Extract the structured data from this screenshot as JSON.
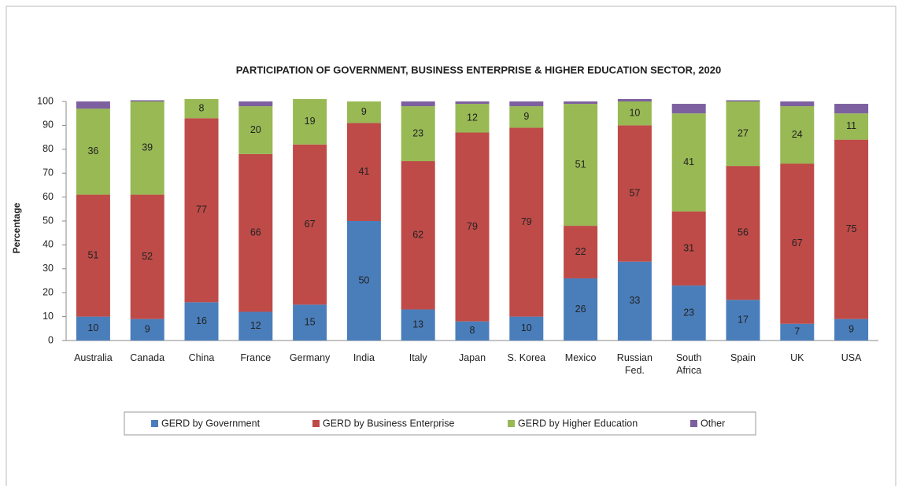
{
  "chart_data": {
    "type": "stacked_bar",
    "title": "PARTICIPATION OF GOVERNMENT, BUSINESS ENTERPRISE & HIGHER EDUCATION SECTOR, 2020",
    "y_label": "Percentage",
    "categories": [
      "Australia",
      "Canada",
      "China",
      "France",
      "Germany",
      "India",
      "Italy",
      "Japan",
      "S. Korea",
      "Mexico",
      "Russian Fed.",
      "South Africa",
      "Spain",
      "UK",
      "USA"
    ],
    "series": [
      {
        "name": "GERD by Government",
        "color": "#4a7ebb",
        "show_labels": true,
        "values": [
          10,
          9,
          16,
          12,
          15,
          50,
          13,
          8,
          10,
          26,
          33,
          23,
          17,
          7,
          9
        ]
      },
      {
        "name": "GERD by Business Enterprise",
        "color": "#be4b48",
        "show_labels": true,
        "values": [
          51,
          52,
          77,
          66,
          67,
          41,
          62,
          79,
          79,
          22,
          57,
          31,
          56,
          67,
          75
        ]
      },
      {
        "name": "GERD by Higher Education",
        "color": "#98b954",
        "show_labels": true,
        "values": [
          36,
          39,
          8,
          20,
          19,
          9,
          23,
          12,
          9,
          51,
          10,
          41,
          27,
          24,
          11
        ]
      },
      {
        "name": "Other",
        "color": "#7d60a0",
        "show_labels": false,
        "values": [
          3,
          0.5,
          0,
          2,
          0,
          0,
          2,
          1,
          2,
          1,
          1,
          4,
          0.5,
          2,
          4
        ]
      }
    ],
    "ylim": [
      0,
      100
    ],
    "yticks": [
      0,
      10,
      20,
      30,
      40,
      50,
      60,
      70,
      80,
      90,
      100
    ],
    "grid": false
  }
}
